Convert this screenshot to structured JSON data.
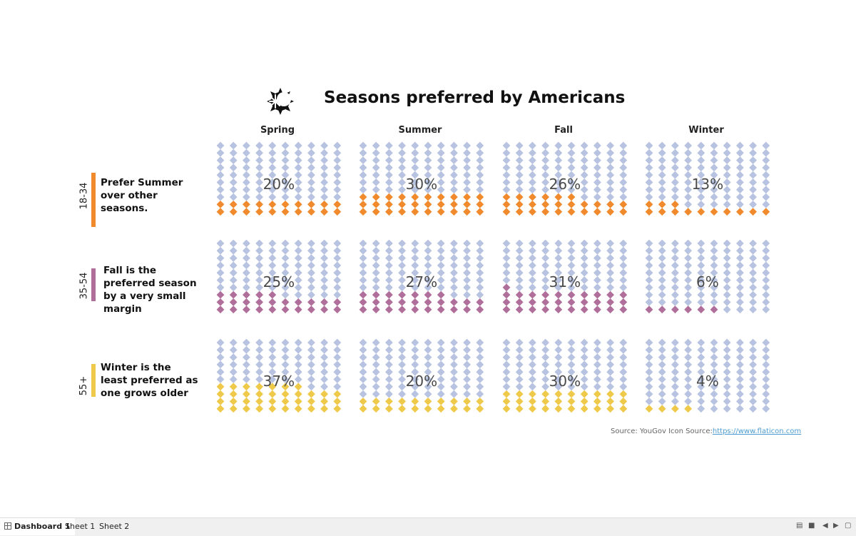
{
  "title": "Seasons preferred by Americans",
  "icon": "snowflake-sun-icon",
  "colors": {
    "empty": "#b7c3e0",
    "rows": [
      "#f08a2c",
      "#b06e9b",
      "#eec94a"
    ]
  },
  "columns": [
    "Spring",
    "Summer",
    "Fall",
    "Winter"
  ],
  "rows": [
    {
      "label": "18-34",
      "note": "Prefer Summer over other seasons."
    },
    {
      "label": "35-54",
      "note": "Fall is the preferred season by a very small margin"
    },
    {
      "label": "55+",
      "note": "Winter is the least preferred as one grows older"
    }
  ],
  "chart_data": {
    "type": "waffle",
    "title": "Seasons preferred by Americans",
    "categories": [
      "Spring",
      "Summer",
      "Fall",
      "Winter"
    ],
    "series": [
      {
        "name": "18-34",
        "values": [
          20,
          30,
          26,
          13
        ],
        "labels": [
          "20%",
          "30%",
          "26%",
          "13%"
        ]
      },
      {
        "name": "35-54",
        "values": [
          25,
          27,
          31,
          6
        ],
        "labels": [
          "25%",
          "27%",
          "31%",
          "6%"
        ]
      },
      {
        "name": "55+",
        "values": [
          37,
          20,
          30,
          4
        ],
        "labels": [
          "37%",
          "20%",
          "30%",
          "4%"
        ]
      }
    ],
    "units": "%",
    "grid_cells": 100
  },
  "source": {
    "text": "Source: YouGov  Icon Source:",
    "link": "https://www.flaticon.com"
  },
  "tabs": [
    "Dashboard 1",
    "Sheet 1",
    "Sheet 2"
  ]
}
